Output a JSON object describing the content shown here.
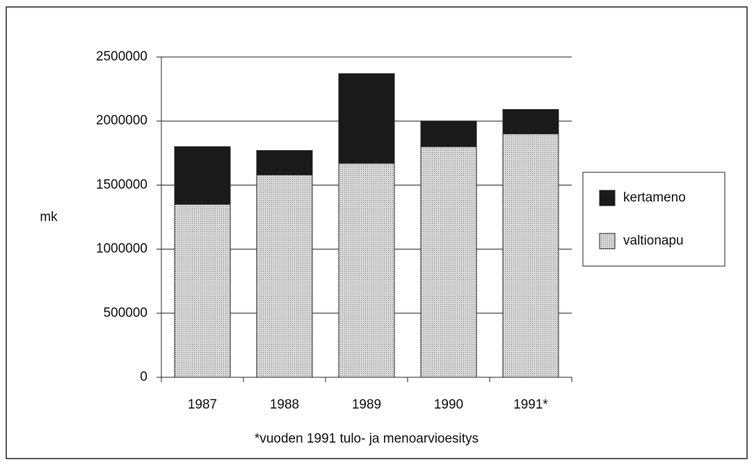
{
  "chart_data": {
    "type": "stacked_bar",
    "categories": [
      "1987",
      "1988",
      "1989",
      "1990",
      "1991*"
    ],
    "series": [
      {
        "name": "kertameno",
        "color": "#1a1a1a",
        "values": [
          450000,
          190000,
          700000,
          200000,
          190000
        ]
      },
      {
        "name": "valtionapu",
        "color": "#d9d9d9",
        "values": [
          1350000,
          1580000,
          1670000,
          1800000,
          1900000
        ]
      }
    ],
    "y_label": "mk",
    "note": "*vuoden 1991 tulo- ja menoarvioesitys",
    "ylim": [
      0,
      2500000
    ],
    "yticks": [
      0,
      500000,
      1000000,
      1500000,
      2000000,
      2500000
    ],
    "grid": true,
    "legend": "right"
  }
}
